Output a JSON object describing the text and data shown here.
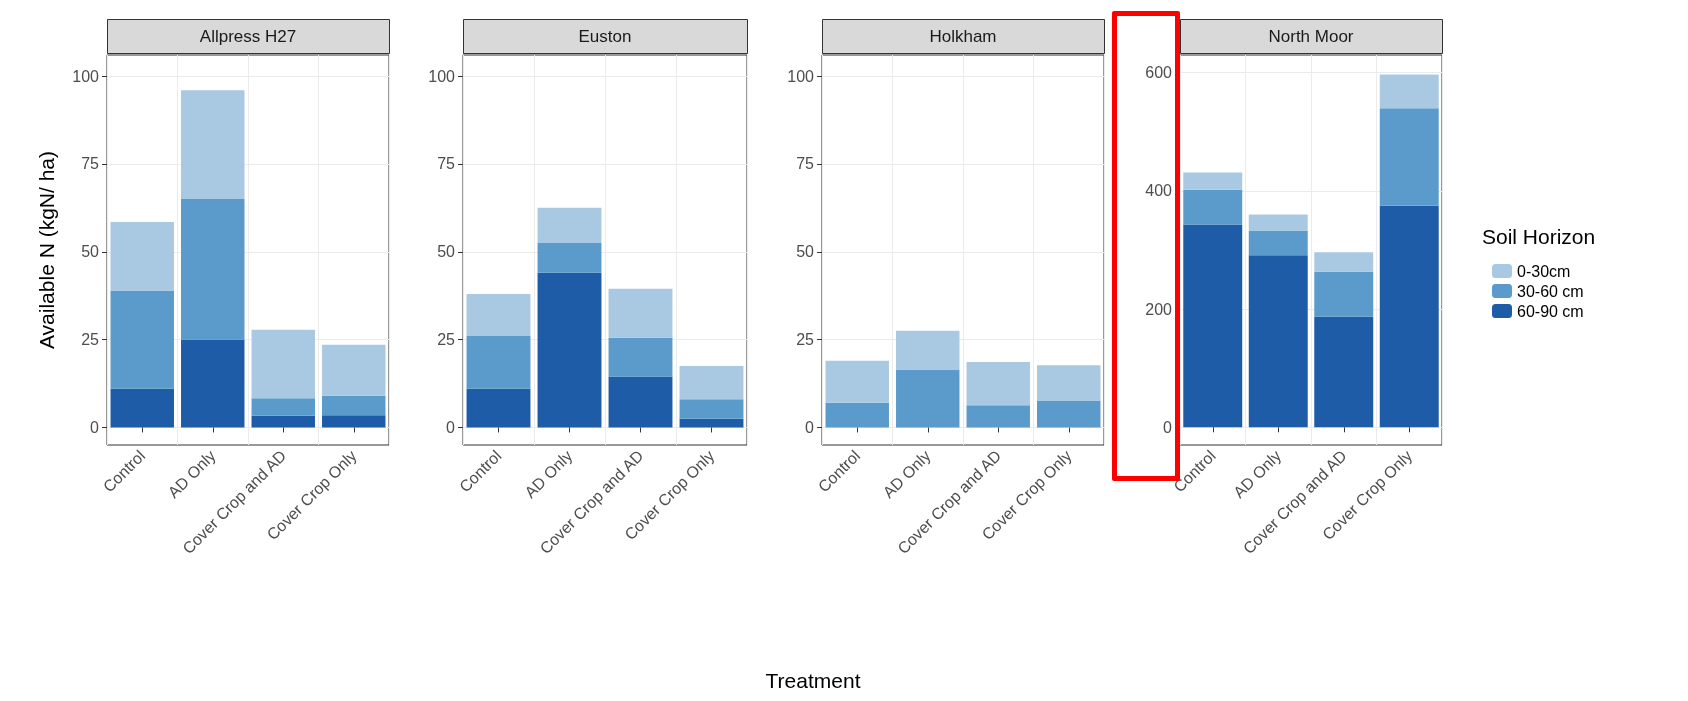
{
  "chart_data": [
    {
      "type": "bar",
      "title": "Allpress H27",
      "ylabel": "Available N (kgN/ ha)",
      "stacked": true,
      "grid": true,
      "legend": false,
      "categories": [
        "Control",
        "AD Only",
        "Cover Crop and AD",
        "Cover Crop Only"
      ],
      "ylim": [
        -5,
        106
      ],
      "yticks": [
        0,
        25,
        50,
        75,
        100
      ],
      "series": [
        {
          "color": "#1f5ca8",
          "values": [
            11,
            25,
            3.3,
            3.5
          ]
        },
        {
          "color": "#5a9bcb",
          "values": [
            28,
            40,
            5,
            5.5
          ]
        },
        {
          "color": "#a9c9e2",
          "values": [
            19.5,
            31,
            19.5,
            14.5
          ]
        }
      ]
    },
    {
      "type": "bar",
      "title": "Euston",
      "stacked": true,
      "grid": true,
      "legend": false,
      "categories": [
        "Control",
        "AD Only",
        "Cover Crop and AD",
        "Cover Crop Only"
      ],
      "ylim": [
        -5,
        106
      ],
      "yticks": [
        0,
        25,
        50,
        75,
        100
      ],
      "series": [
        {
          "color": "#1f5ca8",
          "values": [
            11,
            44,
            14.5,
            2.5
          ]
        },
        {
          "color": "#5a9bcb",
          "values": [
            15,
            8.5,
            11,
            5.5
          ]
        },
        {
          "color": "#a9c9e2",
          "values": [
            12,
            10,
            14,
            9.5
          ]
        }
      ]
    },
    {
      "type": "bar",
      "title": "Holkham",
      "xlabel": "Treatment",
      "stacked": true,
      "grid": true,
      "legend": false,
      "categories": [
        "Control",
        "AD Only",
        "Cover Crop and AD",
        "Cover Crop Only"
      ],
      "ylim": [
        -5,
        106
      ],
      "yticks": [
        0,
        25,
        50,
        75,
        100
      ],
      "series": [
        {
          "color": "#1f5ca8",
          "values": [
            0,
            0,
            0,
            0
          ]
        },
        {
          "color": "#5a9bcb",
          "values": [
            7,
            16.5,
            6.3,
            7.7
          ]
        },
        {
          "color": "#a9c9e2",
          "values": [
            12,
            11,
            12.3,
            10
          ]
        }
      ]
    },
    {
      "type": "bar",
      "title": "North Moor",
      "legend_title": "Soil Horizon",
      "stacked": true,
      "grid": true,
      "legend": "right",
      "categories": [
        "Control",
        "AD Only",
        "Cover Crop and AD",
        "Cover Crop Only"
      ],
      "ylim": [
        -30,
        630
      ],
      "yticks": [
        0,
        200,
        400,
        600
      ],
      "series": [
        {
          "name": "60-90 cm",
          "color": "#1f5ca8",
          "values": [
            343,
            291,
            187,
            375
          ]
        },
        {
          "name": "30-60 cm",
          "color": "#5a9bcb",
          "values": [
            59,
            42,
            76,
            165
          ]
        },
        {
          "name": "0-30cm",
          "color": "#a9c9e2",
          "values": [
            29,
            27,
            33,
            57
          ]
        }
      ]
    }
  ]
}
